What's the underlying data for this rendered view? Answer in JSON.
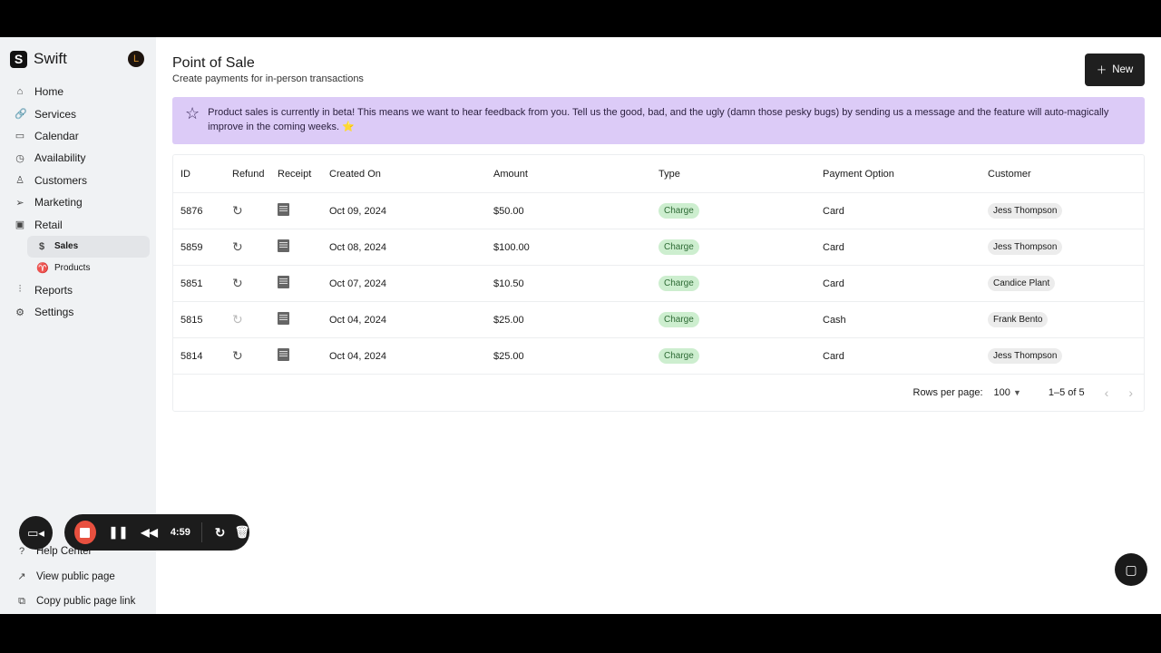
{
  "sidebar": {
    "brand": "Swift",
    "avatar": "L",
    "items": [
      {
        "label": "Home",
        "icon": "home-icon",
        "glyph": "⌂"
      },
      {
        "label": "Services",
        "icon": "link-icon",
        "glyph": "🔗"
      },
      {
        "label": "Calendar",
        "icon": "calendar-icon",
        "glyph": "▭"
      },
      {
        "label": "Availability",
        "icon": "clock-icon",
        "glyph": "◷"
      },
      {
        "label": "Customers",
        "icon": "user-icon",
        "glyph": "♙"
      },
      {
        "label": "Marketing",
        "icon": "send-icon",
        "glyph": "➢"
      },
      {
        "label": "Retail",
        "icon": "shopping-bag-icon",
        "glyph": "▣"
      }
    ],
    "sub": [
      {
        "label": "Sales",
        "icon": "dollar-icon",
        "glyph": "$"
      },
      {
        "label": "Products",
        "icon": "shirt-icon",
        "glyph": "♈"
      }
    ],
    "items2": [
      {
        "label": "Reports",
        "icon": "bar-chart-icon",
        "glyph": "⫶"
      },
      {
        "label": "Settings",
        "icon": "gear-icon",
        "glyph": "⚙"
      }
    ],
    "bottom": [
      {
        "label": "Help Center",
        "icon": "help-icon",
        "glyph": "?"
      },
      {
        "label": "View public page",
        "icon": "external-link-icon",
        "glyph": "↗"
      },
      {
        "label": "Copy public page link",
        "icon": "copy-icon",
        "glyph": "⧉"
      }
    ]
  },
  "header": {
    "title": "Point of Sale",
    "subtitle": "Create payments for in-person transactions",
    "new_label": "New"
  },
  "banner": {
    "text": "Product sales is currently in beta! This means we want to hear feedback from you. Tell us the good, bad, and the ugly (damn those pesky bugs) by sending us a message and the feature will auto-magically improve in the coming weeks. ⭐",
    "color": "#dccbf7"
  },
  "table": {
    "columns": [
      "ID",
      "Refund",
      "Receipt",
      "Created On",
      "Amount",
      "Type",
      "Payment Option",
      "Customer"
    ],
    "rows": [
      {
        "id": "5876",
        "refund_enabled": true,
        "date": "Oct 09, 2024",
        "amount": "$50.00",
        "type": "Charge",
        "payment": "Card",
        "customer": "Jess Thompson"
      },
      {
        "id": "5859",
        "refund_enabled": true,
        "date": "Oct 08, 2024",
        "amount": "$100.00",
        "type": "Charge",
        "payment": "Card",
        "customer": "Jess Thompson"
      },
      {
        "id": "5851",
        "refund_enabled": true,
        "date": "Oct 07, 2024",
        "amount": "$10.50",
        "type": "Charge",
        "payment": "Card",
        "customer": "Candice Plant"
      },
      {
        "id": "5815",
        "refund_enabled": false,
        "date": "Oct 04, 2024",
        "amount": "$25.00",
        "type": "Charge",
        "payment": "Cash",
        "customer": "Frank Bento"
      },
      {
        "id": "5814",
        "refund_enabled": true,
        "date": "Oct 04, 2024",
        "amount": "$25.00",
        "type": "Charge",
        "payment": "Card",
        "customer": "Jess Thompson"
      }
    ],
    "rows_per_page_label": "Rows per page:",
    "rows_per_page": "100",
    "range": "1–5 of 5"
  },
  "recorder": {
    "time": "4:59"
  }
}
